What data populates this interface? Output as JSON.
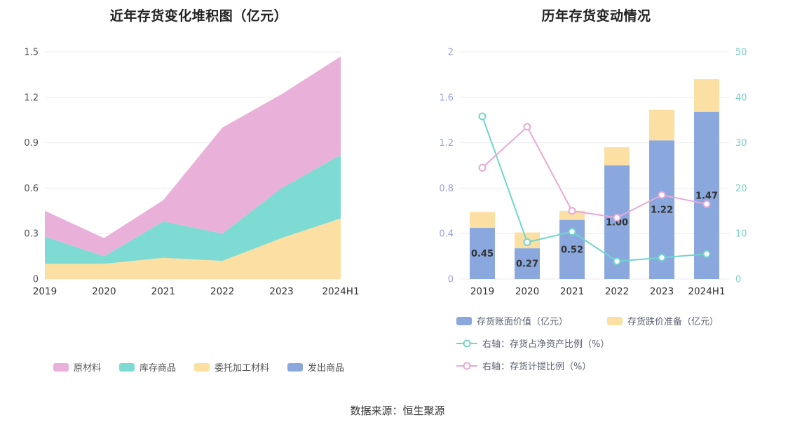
{
  "footer": {
    "source_text": "数据来源：恒生聚源"
  },
  "chart_data": [
    {
      "type": "area",
      "title": "近年存货变化堆积图（亿元）",
      "categories": [
        "2019",
        "2020",
        "2021",
        "2022",
        "2023",
        "2024H1"
      ],
      "ylim": [
        0,
        1.5
      ],
      "yticks": [
        0,
        0.3,
        0.6,
        0.9,
        1.2,
        1.5
      ],
      "grid": true,
      "legend_position": "bottom",
      "stack_order": [
        "委托加工材料",
        "库存商品",
        "原材料",
        "发出商品"
      ],
      "series": [
        {
          "name": "原材料",
          "color": "#e9b0da",
          "values": [
            0.17,
            0.12,
            0.14,
            0.7,
            0.62,
            0.65
          ]
        },
        {
          "name": "库存商品",
          "color": "#7edbd3",
          "values": [
            0.18,
            0.05,
            0.24,
            0.18,
            0.33,
            0.42
          ]
        },
        {
          "name": "委托加工材料",
          "color": "#fcdfa2",
          "values": [
            0.1,
            0.1,
            0.14,
            0.12,
            0.27,
            0.4
          ]
        },
        {
          "name": "发出商品",
          "color": "#8aa8de",
          "values": [
            0,
            0,
            0,
            0,
            0,
            0
          ]
        }
      ],
      "stacked_totals": [
        0.45,
        0.27,
        0.52,
        1.0,
        1.22,
        1.47
      ]
    },
    {
      "type": "bar-line-combo",
      "title": "历年存货变动情况",
      "categories": [
        "2019",
        "2020",
        "2021",
        "2022",
        "2023",
        "2024H1"
      ],
      "left_ylim": [
        0,
        2
      ],
      "left_yticks": [
        0,
        0.4,
        0.8,
        1.2,
        1.6,
        2
      ],
      "right_ylim": [
        0,
        50
      ],
      "right_yticks": [
        0,
        10,
        20,
        30,
        40,
        50
      ],
      "grid": true,
      "legend_position": "bottom",
      "bar_series": [
        {
          "name": "存货账面价值（亿元）",
          "axis": "left",
          "color": "#8aa8de",
          "values": [
            0.45,
            0.27,
            0.52,
            1.0,
            1.22,
            1.47
          ],
          "labels": [
            "0.45",
            "0.27",
            "0.52",
            "1.00",
            "1.22",
            "1.47"
          ]
        },
        {
          "name": "存货跌价准备（亿元）",
          "axis": "left",
          "color": "#fcdfa2",
          "values": [
            0.14,
            0.14,
            0.08,
            0.16,
            0.27,
            0.29
          ]
        }
      ],
      "line_series": [
        {
          "name": "右轴：存货占净资产比例（%）",
          "axis": "right",
          "color": "#72d5cd",
          "values": [
            35.8,
            8.1,
            10.4,
            3.9,
            4.7,
            5.5
          ]
        },
        {
          "name": "右轴：存货计提比例（%）",
          "axis": "right",
          "color": "#e8a9d6",
          "values": [
            24.5,
            33.5,
            15.0,
            13.5,
            18.5,
            16.5
          ]
        }
      ]
    }
  ]
}
